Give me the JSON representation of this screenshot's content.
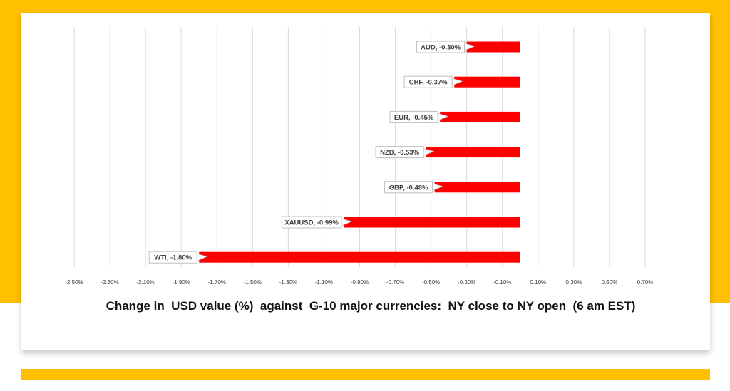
{
  "chart_data": {
    "type": "bar",
    "orientation": "horizontal",
    "title": "Change in  USD value (%)  against  G-10 major currencies:  NY close to NY open  (6 am EST)",
    "categories": [
      "AUD",
      "CHF",
      "EUR",
      "NZD",
      "GBP",
      "XAUUSD",
      "WTI"
    ],
    "values": [
      -0.3,
      -0.37,
      -0.45,
      -0.53,
      -0.48,
      -0.99,
      -1.8
    ],
    "data_labels": [
      "AUD, -0.30%",
      "CHF, -0.37%",
      "EUR, -0.45%",
      "NZD, -0.53%",
      "GBP, -0.48%",
      "XAUUSD, -0.99%",
      "WTI, -1.80%"
    ],
    "x_ticks": [
      "-2.50%",
      "-2.30%",
      "-2.10%",
      "-1.90%",
      "-1.70%",
      "-1.50%",
      "-1.30%",
      "-1.10%",
      "-0.90%",
      "-0.70%",
      "-0.50%",
      "-0.30%",
      "-0.10%",
      "0.10%",
      "0.30%",
      "0.50%",
      "0.70%"
    ],
    "xlim": [
      -2.5,
      0.7
    ],
    "bar_color": "#FF0000",
    "grid": true,
    "legend": "none"
  }
}
